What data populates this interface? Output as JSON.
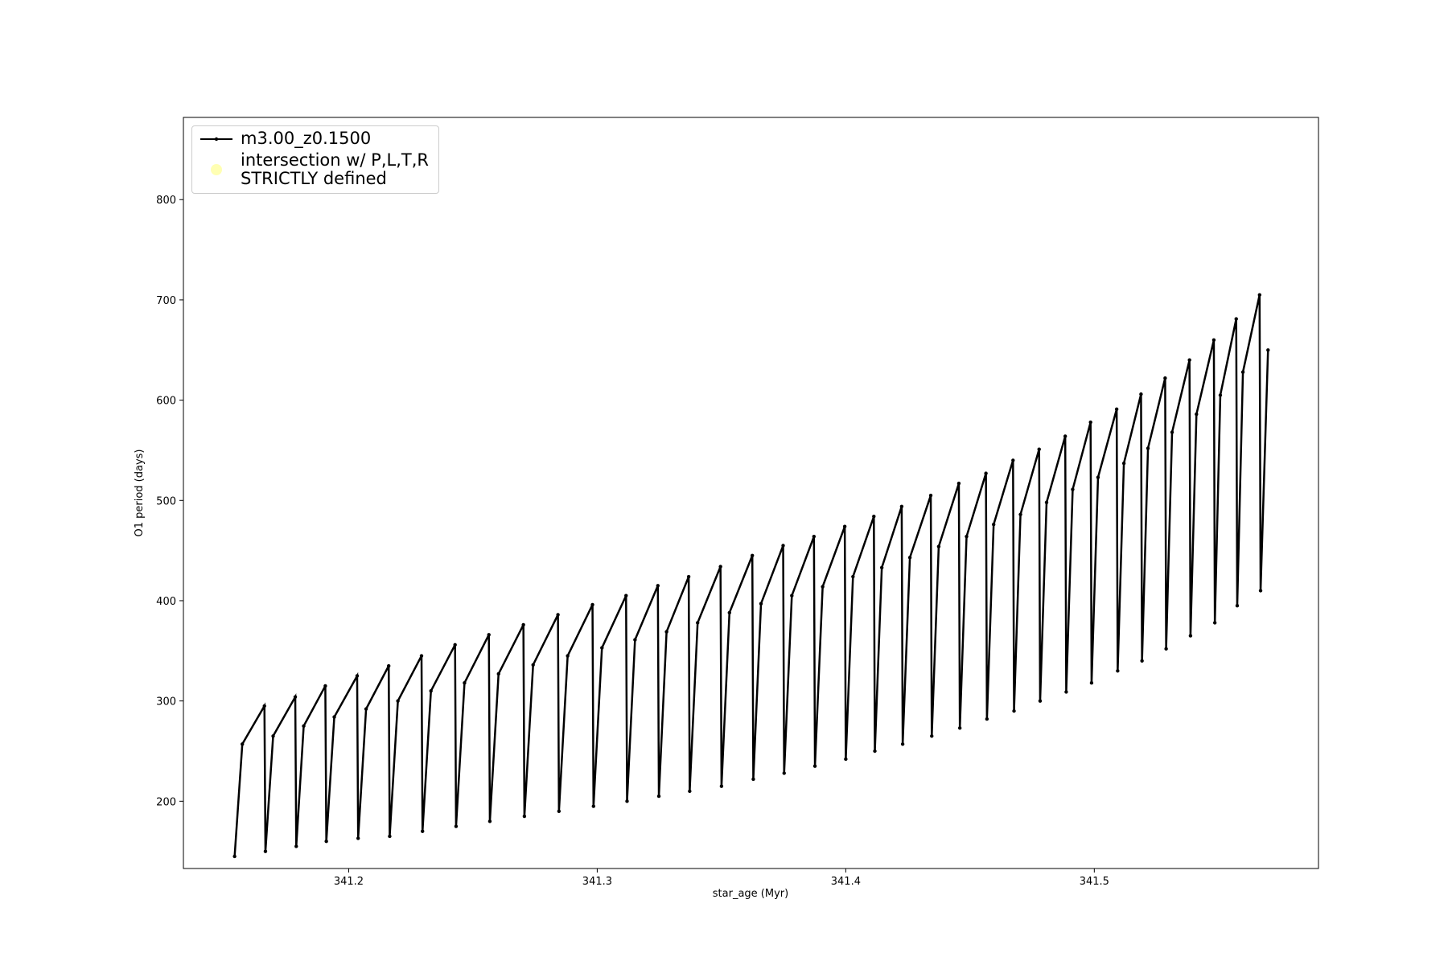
{
  "chart_data": {
    "type": "line",
    "xlabel": "star_age (Myr)",
    "ylabel": "O1 period (days)",
    "xlim": [
      341.1335,
      341.5902
    ],
    "ylim": [
      132.9,
      882
    ],
    "xticks": [
      341.2,
      341.3,
      341.4,
      341.5
    ],
    "yticks": [
      200,
      300,
      400,
      500,
      600,
      700,
      800
    ],
    "legend": "upper left",
    "series": [
      {
        "name": "m3.00_z0.1500",
        "color": "#000000",
        "x": [
          341.1541,
          341.1572,
          341.1661,
          341.1665,
          341.1696,
          341.1785,
          341.1789,
          341.1819,
          341.1906,
          341.191,
          341.1942,
          341.2034,
          341.2038,
          341.207,
          341.2161,
          341.2165,
          341.2198,
          341.2293,
          341.2297,
          341.2331,
          341.2428,
          341.2432,
          341.2466,
          341.2564,
          341.2568,
          341.2603,
          341.2703,
          341.2707,
          341.2742,
          341.2842,
          341.2846,
          341.2881,
          341.2981,
          341.2985,
          341.3019,
          341.3116,
          341.312,
          341.3152,
          341.3244,
          341.3248,
          341.3279,
          341.3368,
          341.3372,
          341.3404,
          341.3496,
          341.35,
          341.3532,
          341.3624,
          341.3628,
          341.3659,
          341.3748,
          341.3752,
          341.3783,
          341.3872,
          341.3876,
          341.3907,
          341.3996,
          341.4,
          341.4029,
          341.4113,
          341.4117,
          341.4145,
          341.4225,
          341.4229,
          341.4258,
          341.4342,
          341.4346,
          341.4374,
          341.4455,
          341.4459,
          341.4486,
          341.4564,
          341.4568,
          341.4595,
          341.4673,
          341.4677,
          341.4703,
          341.4778,
          341.4782,
          341.4808,
          341.4883,
          341.4887,
          341.4913,
          341.4985,
          341.4989,
          341.5015,
          341.509,
          341.5094,
          341.5119,
          341.5188,
          341.5192,
          341.5216,
          341.5285,
          341.5289,
          341.5313,
          341.5383,
          341.5387,
          341.5411,
          341.5481,
          341.5485,
          341.5507,
          341.5571,
          341.5575,
          341.5598,
          341.5665,
          341.5669,
          341.5699
        ],
        "values": [
          145,
          257,
          295,
          150,
          265,
          304,
          155,
          275,
          315,
          160,
          284,
          325,
          163,
          292,
          335,
          165,
          300,
          345,
          170,
          310,
          356,
          175,
          318,
          366,
          180,
          327,
          376,
          185,
          336,
          386,
          190,
          345,
          396,
          195,
          353,
          405,
          200,
          361,
          415,
          205,
          369,
          424,
          210,
          378,
          434,
          215,
          388,
          445,
          222,
          397,
          455,
          228,
          405,
          464,
          235,
          414,
          474,
          242,
          424,
          484,
          250,
          433,
          494,
          257,
          443,
          505,
          265,
          454,
          517,
          273,
          464,
          527,
          282,
          476,
          540,
          290,
          486,
          551,
          300,
          498,
          564,
          309,
          511,
          578,
          318,
          523,
          591,
          330,
          537,
          606,
          340,
          552,
          622,
          352,
          568,
          640,
          365,
          586,
          660,
          378,
          605,
          681,
          395,
          628,
          705,
          410,
          650
        ]
      },
      {
        "name": "intersection w/ P,L,T,R\nSTRICTLY defined",
        "color": "#ffffb3"
      }
    ]
  }
}
